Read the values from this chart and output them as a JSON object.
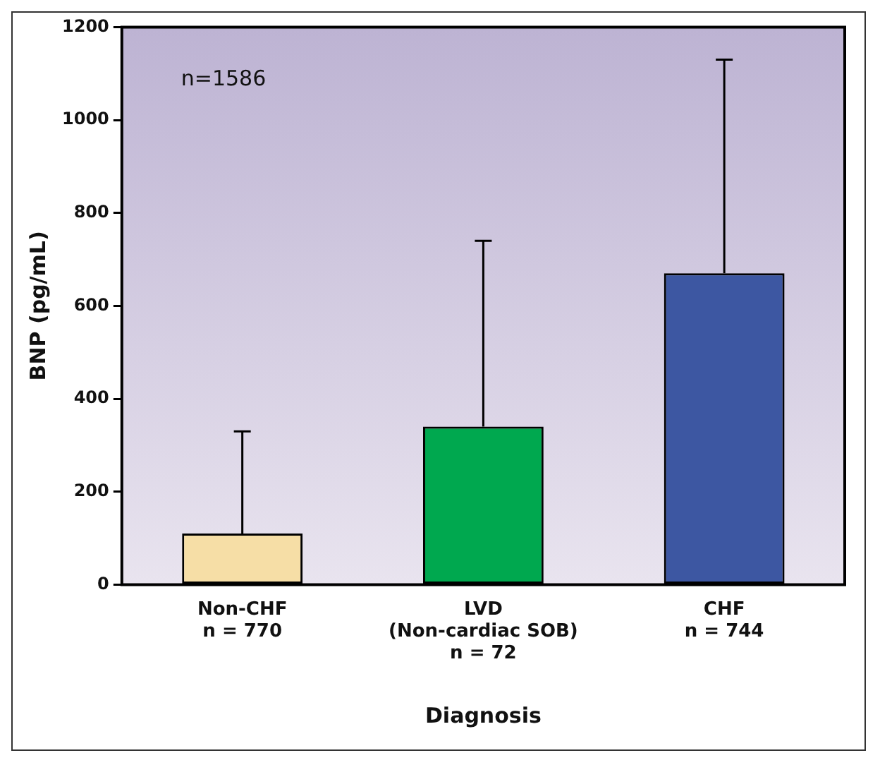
{
  "chart_data": {
    "type": "bar",
    "categories": [
      "Non-CHF\nn = 770",
      "LVD\n(Non-cardiac SOB)\nn = 72",
      "CHF\nn = 744"
    ],
    "values": [
      110,
      340,
      670
    ],
    "colors": [
      "#f6dea6",
      "#00a84f",
      "#3d57a2"
    ],
    "errors": [
      [
        110,
        330
      ],
      [
        340,
        740
      ],
      [
        670,
        1130
      ]
    ],
    "xlabel": "Diagnosis",
    "ylabel": "BNP (pg/mL)",
    "annotations": [
      "n=1586"
    ],
    "ylim": [
      0,
      1200
    ],
    "yticks": [
      0,
      200,
      400,
      600,
      800,
      1000,
      1200
    ],
    "grid": false,
    "legend": false
  }
}
